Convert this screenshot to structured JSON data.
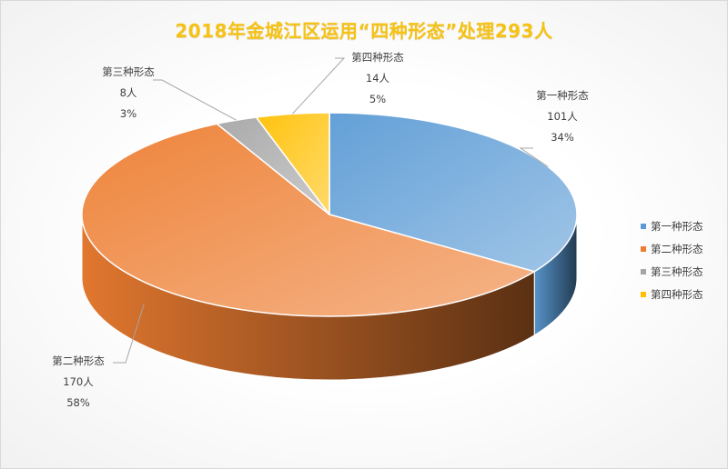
{
  "chart_data": {
    "type": "pie",
    "style": "3d",
    "title": "2018年金城江区运用“四种形态”处理293人",
    "total": 293,
    "unit": "人",
    "slices": [
      {
        "name": "第一种形态",
        "value": 101,
        "value_label": "101人",
        "percent": 34,
        "percent_label": "34%",
        "color": "#5b9bd5"
      },
      {
        "name": "第二种形态",
        "value": 170,
        "value_label": "170人",
        "percent": 58,
        "percent_label": "58%",
        "color": "#ed7d31"
      },
      {
        "name": "第三种形态",
        "value": 8,
        "value_label": "8人",
        "percent": 3,
        "percent_label": "3%",
        "color": "#a5a5a5"
      },
      {
        "name": "第四种形态",
        "value": 14,
        "value_label": "14人",
        "percent": 5,
        "percent_label": "5%",
        "color": "#ffc000"
      }
    ],
    "legend_position": "right"
  }
}
